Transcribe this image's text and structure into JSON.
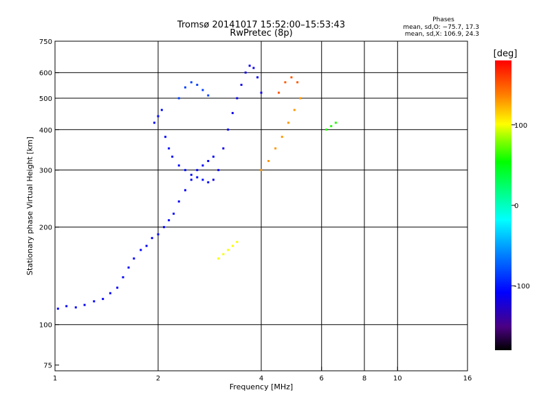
{
  "chart_data": {
    "type": "scatter",
    "title": "Tromsø 20141017 15:52:00–15:53:43",
    "subtitle": "RwPretec (8p)",
    "xlabel": "Frequency [MHz]",
    "ylabel": "Stationary phase Virtual Height [km]",
    "xscale": "log",
    "yscale": "log",
    "xlim": [
      1,
      16
    ],
    "ylim": [
      72,
      750
    ],
    "xticks": [
      1,
      2,
      4,
      6,
      8,
      10,
      16
    ],
    "yticks": [
      75,
      100,
      200,
      300,
      400,
      500,
      600,
      750
    ],
    "x_gridlines": [
      2,
      4,
      6,
      8,
      10
    ],
    "y_gridlines": [
      100,
      200,
      300,
      400,
      500,
      600
    ],
    "grid": true,
    "annotation": {
      "title": "Phases",
      "line1": "mean, sd,O: −75.7, 17.3",
      "line2": "mean, sd,X: 106.9, 24.3"
    },
    "colorbar": {
      "label": "[deg]",
      "range": [
        -180,
        180
      ],
      "ticks": [
        100,
        0,
        -100
      ],
      "colormap": "rainbow"
    },
    "series": [
      {
        "phase_deg": -110,
        "x": [
          1.02,
          1.08,
          1.15,
          1.22,
          1.3,
          1.38,
          1.45,
          1.52,
          1.58,
          1.64,
          1.7,
          1.78,
          1.85,
          1.92,
          2.0,
          2.08,
          2.15,
          2.22,
          2.3,
          2.4,
          2.5,
          2.6,
          2.7,
          2.8,
          2.9
        ],
        "y": [
          112,
          114,
          113,
          115,
          118,
          120,
          125,
          130,
          140,
          150,
          160,
          170,
          175,
          185,
          190,
          200,
          210,
          220,
          240,
          260,
          280,
          300,
          310,
          320,
          330
        ]
      },
      {
        "phase_deg": -105,
        "x": [
          1.95,
          2.0,
          2.05,
          2.1,
          2.15,
          2.2,
          2.3,
          2.4,
          2.5,
          2.6,
          2.7,
          2.8
        ],
        "y": [
          420,
          440,
          460,
          380,
          350,
          330,
          310,
          300,
          290,
          285,
          280,
          275
        ]
      },
      {
        "phase_deg": -115,
        "x": [
          2.9,
          3.0,
          3.1,
          3.2,
          3.3,
          3.4,
          3.5,
          3.6,
          3.7,
          3.8,
          3.9,
          4.0
        ],
        "y": [
          280,
          300,
          350,
          400,
          450,
          500,
          550,
          600,
          630,
          620,
          580,
          520
        ]
      },
      {
        "phase_deg": -85,
        "x": [
          2.3,
          2.4,
          2.5,
          2.6,
          2.7,
          2.8
        ],
        "y": [
          500,
          540,
          560,
          550,
          530,
          510
        ]
      },
      {
        "phase_deg": 130,
        "x": [
          4.0,
          4.2,
          4.4,
          4.6,
          4.8,
          5.0,
          5.2
        ],
        "y": [
          300,
          320,
          350,
          380,
          420,
          460,
          500
        ]
      },
      {
        "phase_deg": 150,
        "x": [
          4.5,
          4.7,
          4.9,
          5.1
        ],
        "y": [
          520,
          560,
          580,
          560
        ]
      },
      {
        "phase_deg": 100,
        "x": [
          3.0,
          3.1,
          3.2,
          3.3,
          3.4
        ],
        "y": [
          160,
          165,
          170,
          175,
          180
        ]
      },
      {
        "phase_deg": 60,
        "x": [
          6.2,
          6.4,
          6.6
        ],
        "y": [
          400,
          410,
          420
        ]
      }
    ]
  }
}
